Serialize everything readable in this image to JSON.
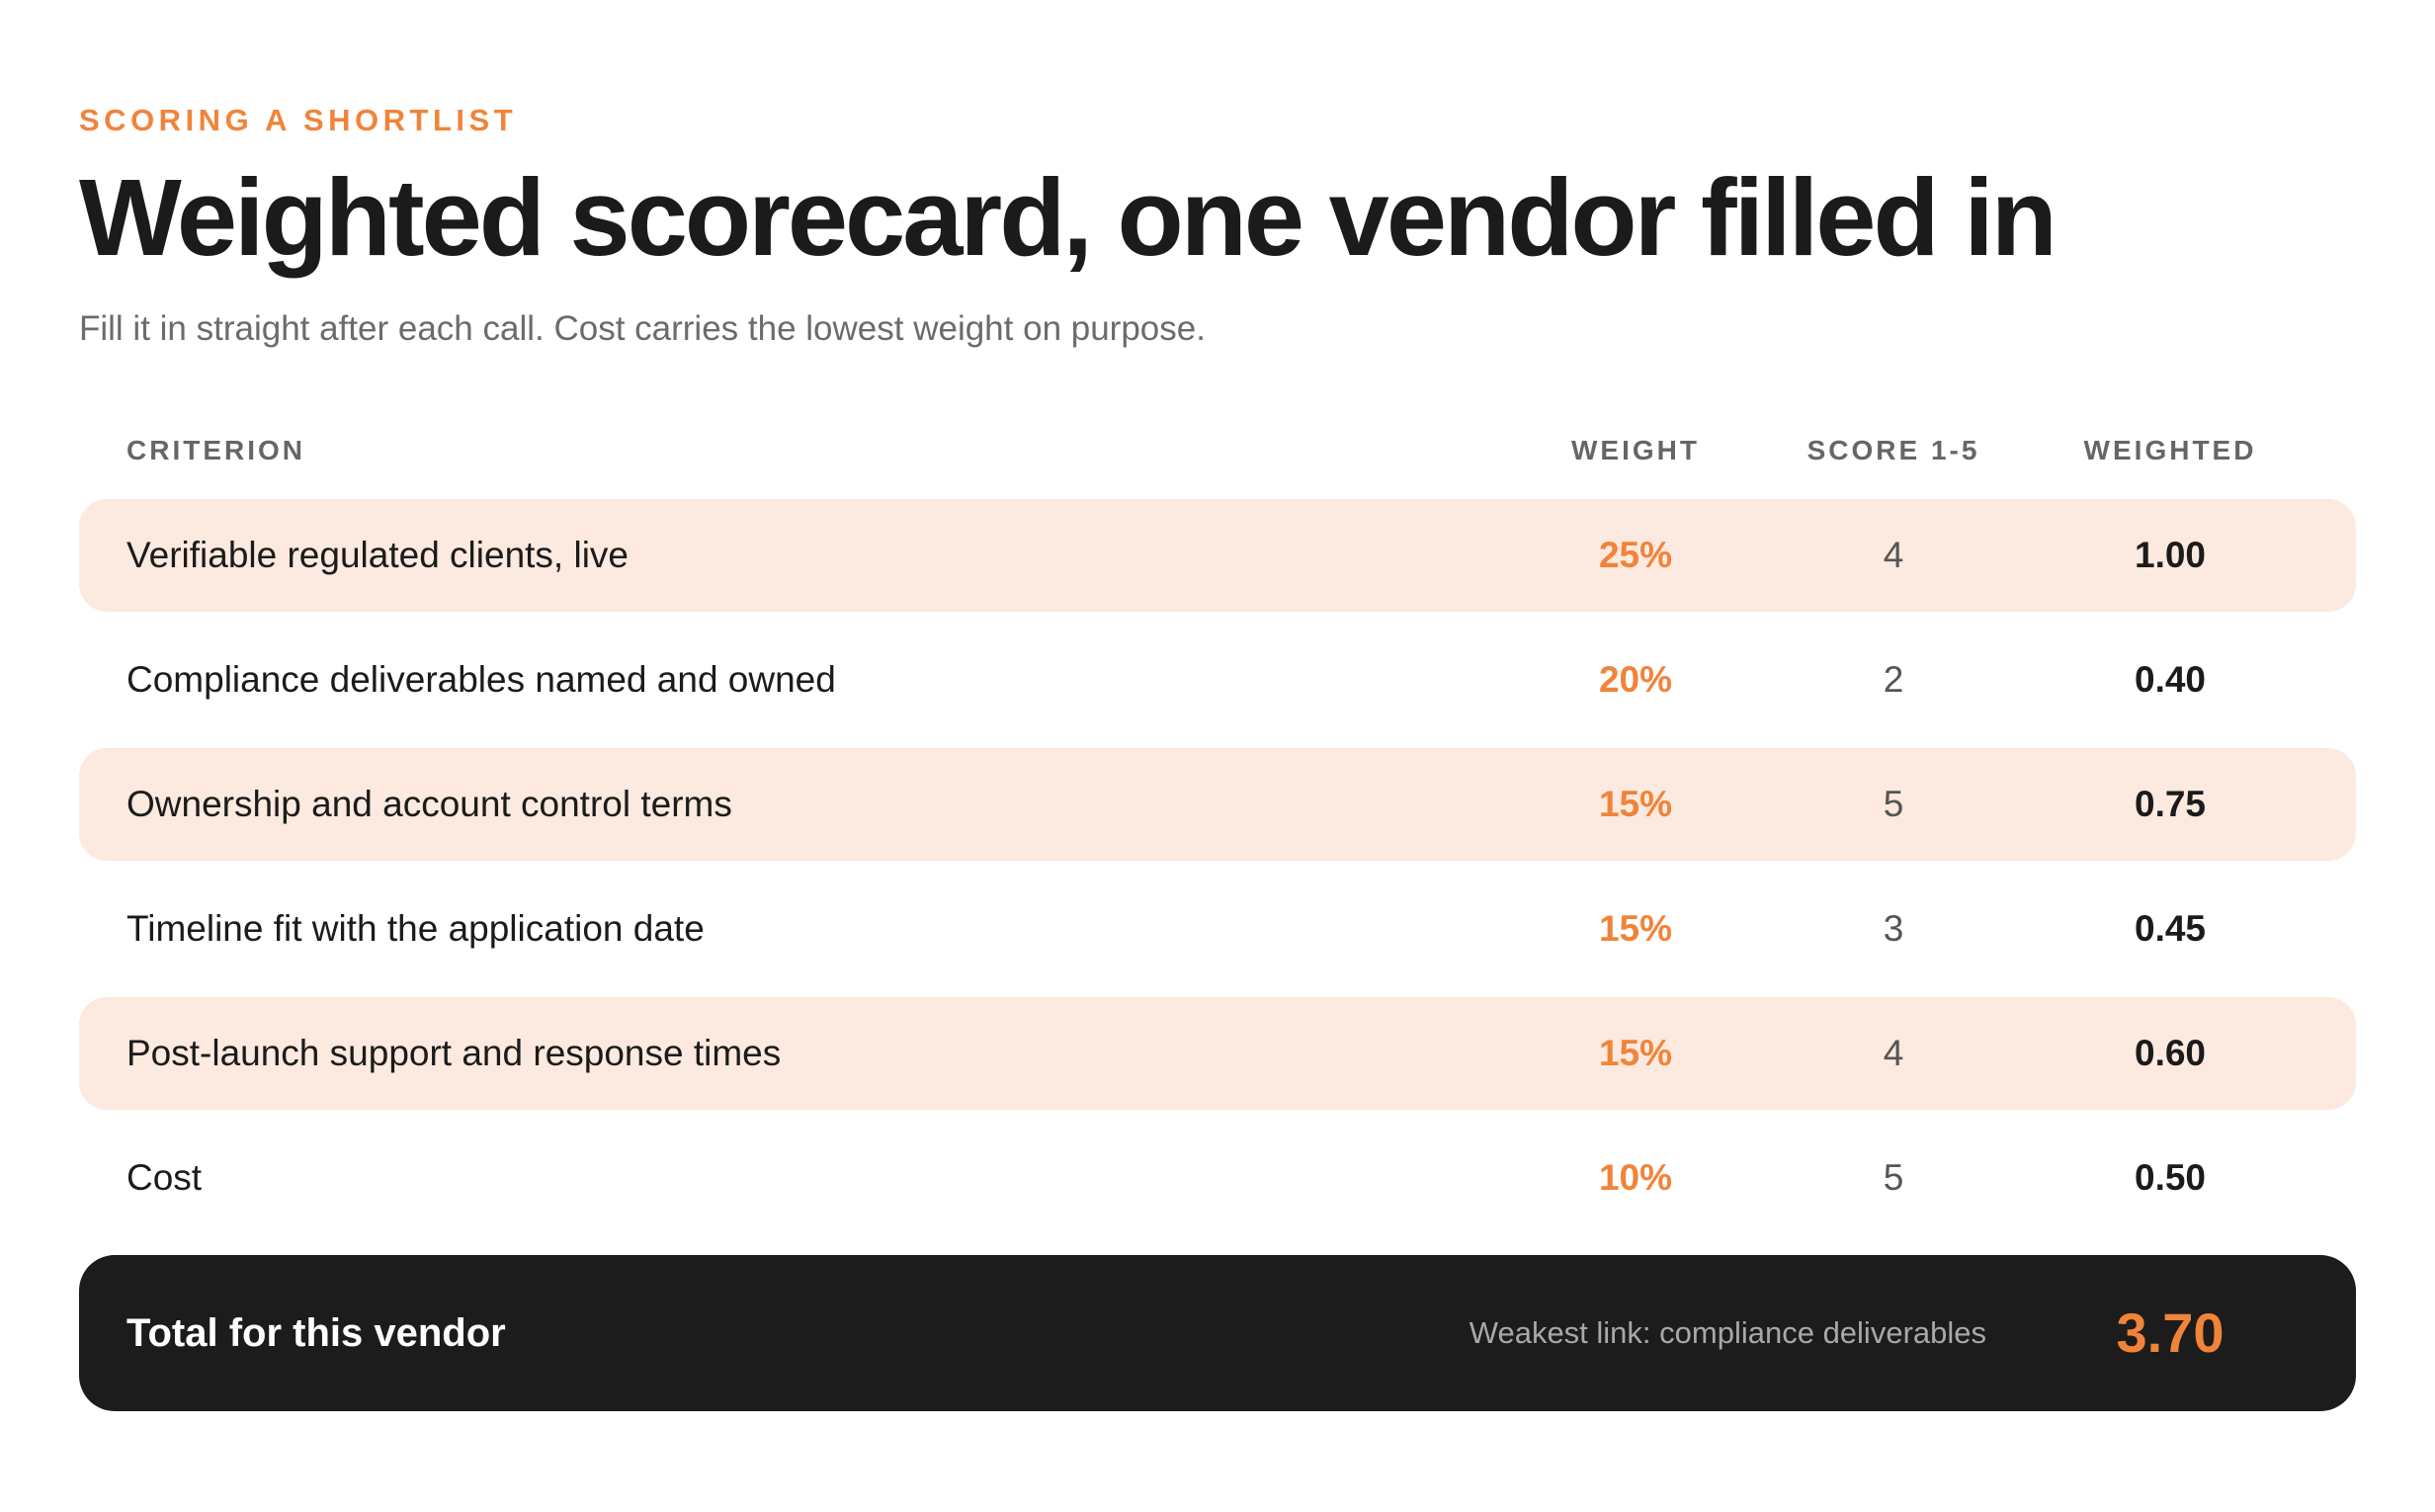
{
  "header": {
    "eyebrow": "SCORING A SHORTLIST",
    "title": "Weighted scorecard, one vendor filled in",
    "subtitle": "Fill it in straight after each call. Cost carries the lowest weight on purpose."
  },
  "table": {
    "columns": {
      "criterion": "CRITERION",
      "weight": "WEIGHT",
      "score": "SCORE 1-5",
      "weighted": "WEIGHTED"
    },
    "rows": [
      {
        "criterion": "Verifiable regulated clients, live",
        "weight": "25%",
        "score": "4",
        "weighted": "1.00",
        "shaded": true
      },
      {
        "criterion": "Compliance deliverables named and owned",
        "weight": "20%",
        "score": "2",
        "weighted": "0.40",
        "shaded": false
      },
      {
        "criterion": "Ownership and account control terms",
        "weight": "15%",
        "score": "5",
        "weighted": "0.75",
        "shaded": true
      },
      {
        "criterion": "Timeline fit with the application date",
        "weight": "15%",
        "score": "3",
        "weighted": "0.45",
        "shaded": false
      },
      {
        "criterion": "Post-launch support and response times",
        "weight": "15%",
        "score": "4",
        "weighted": "0.60",
        "shaded": true
      },
      {
        "criterion": "Cost",
        "weight": "10%",
        "score": "5",
        "weighted": "0.50",
        "shaded": false
      }
    ]
  },
  "total": {
    "label": "Total for this vendor",
    "note": "Weakest link: compliance deliverables",
    "value": "3.70"
  },
  "colors": {
    "accent": "#f0843a",
    "row_shade": "#fce9df",
    "total_bg": "#1c1c1c"
  }
}
